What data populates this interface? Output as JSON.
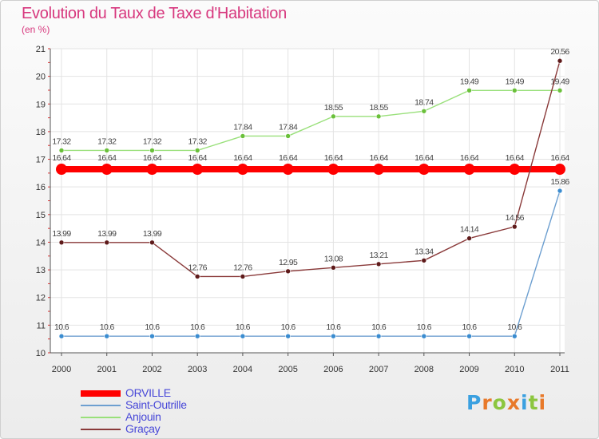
{
  "title": "Evolution du Taux de Taxe d'Habitation",
  "subtitle": "(en %)",
  "colors": {
    "title": "#d7387e",
    "legend_text": "#4848d8",
    "grid": "#e3e3e3",
    "axis": "#555555"
  },
  "logo": {
    "text": "Proxiti",
    "letter_colors": [
      "#3aa0e0",
      "#e8792a",
      "#8cc63f",
      "#e8792a",
      "#3aa0e0",
      "#8cc63f",
      "#e8792a"
    ]
  },
  "chart_data": {
    "type": "line",
    "title": "Evolution du Taux de Taxe d'Habitation",
    "subtitle": "(en %)",
    "x": [
      "2000",
      "2001",
      "2002",
      "2003",
      "2004",
      "2005",
      "2006",
      "2007",
      "2008",
      "2009",
      "2010",
      "2011"
    ],
    "yticks": [
      "10",
      "11",
      "12",
      "13",
      "14",
      "15",
      "16",
      "17",
      "18",
      "19",
      "20",
      "21"
    ],
    "ylim": [
      10,
      21
    ],
    "grid": true,
    "legend_position": "bottom-left",
    "series": [
      {
        "name": "ORVILLE",
        "color": "#ff0000",
        "line_width": "thick",
        "values": [
          16.64,
          16.64,
          16.64,
          16.64,
          16.64,
          16.64,
          16.64,
          16.64,
          16.64,
          16.64,
          16.64,
          16.64
        ],
        "labels": [
          "16.64",
          "16.64",
          "16.64",
          "16.64",
          "16.64",
          "16.64",
          "16.64",
          "16.64",
          "16.64",
          "16.64",
          "16.64",
          "16.64"
        ]
      },
      {
        "name": "Saint-Outrille",
        "color": "#6d9fd0",
        "marker_color": "#3a8cd0",
        "line_width": "thin",
        "values": [
          10.6,
          10.6,
          10.6,
          10.6,
          10.6,
          10.6,
          10.6,
          10.6,
          10.6,
          10.6,
          10.6,
          15.86
        ],
        "labels": [
          "10.6",
          "10.6",
          "10.6",
          "10.6",
          "10.6",
          "10.6",
          "10.6",
          "10.6",
          "10.6",
          "10.6",
          "10.6",
          "15.86"
        ]
      },
      {
        "name": "Anjouin",
        "color": "#99e07a",
        "marker_color": "#6ac03a",
        "line_width": "thin",
        "values": [
          17.32,
          17.32,
          17.32,
          17.32,
          17.84,
          17.84,
          18.55,
          18.55,
          18.74,
          19.49,
          19.49,
          19.49
        ],
        "labels": [
          "17.32",
          "17.32",
          "17.32",
          "17.32",
          "17.84",
          "17.84",
          "18.55",
          "18.55",
          "18.74",
          "19.49",
          "19.49",
          "19.49"
        ]
      },
      {
        "name": "Graçay",
        "color": "#8a3a3a",
        "marker_color": "#5e1a1a",
        "line_width": "thin",
        "values": [
          13.99,
          13.99,
          13.99,
          12.76,
          12.76,
          12.95,
          13.08,
          13.21,
          13.34,
          14.14,
          14.56,
          20.56
        ],
        "labels": [
          "13.99",
          "13.99",
          "13.99",
          "12.76",
          "12.76",
          "12.95",
          "13.08",
          "13.21",
          "13.34",
          "14.14",
          "14.56",
          "20.56"
        ]
      }
    ]
  }
}
